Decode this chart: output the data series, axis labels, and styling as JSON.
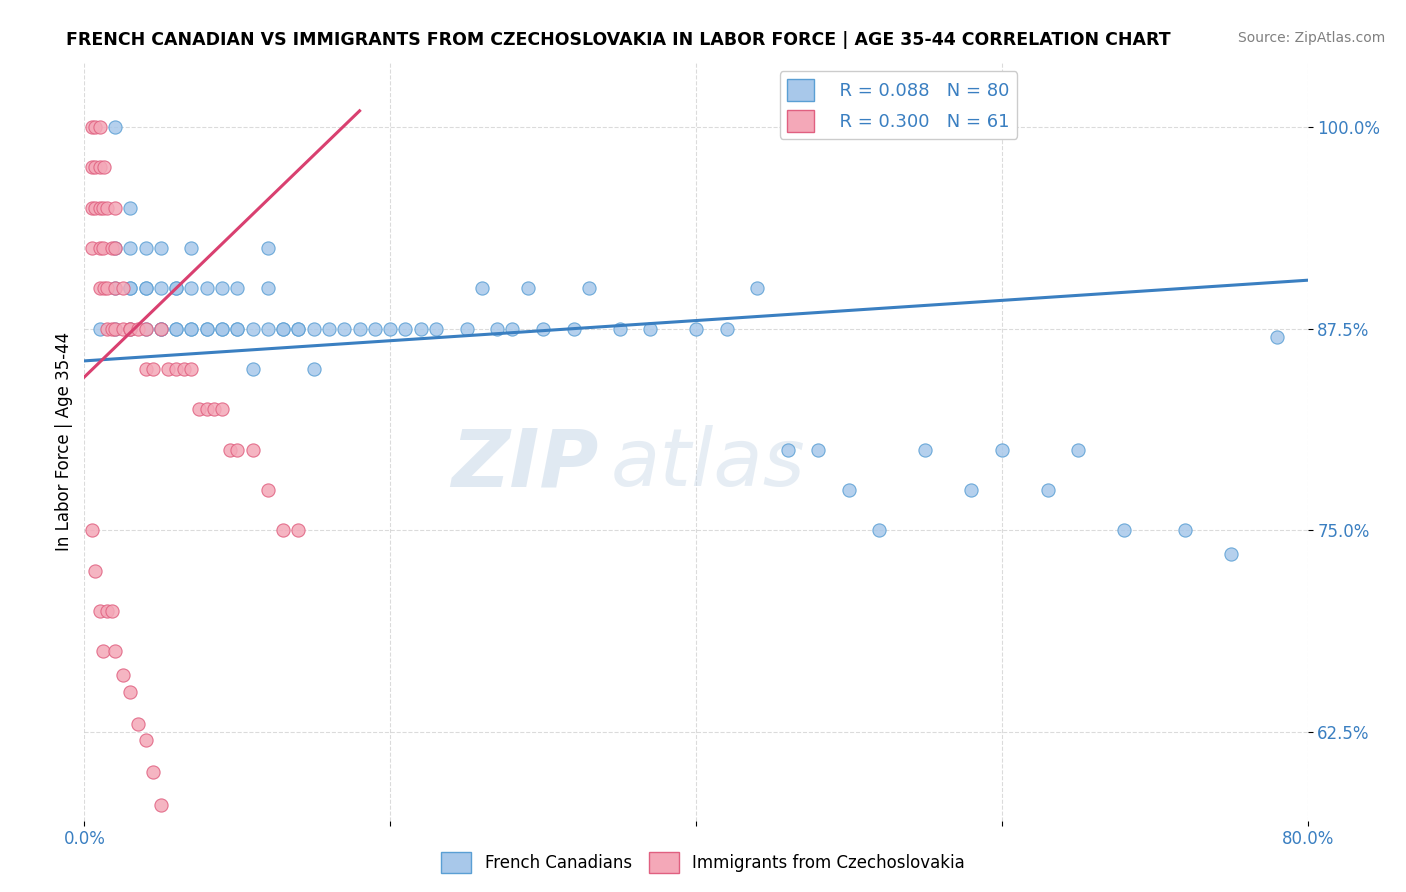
{
  "title": "FRENCH CANADIAN VS IMMIGRANTS FROM CZECHOSLOVAKIA IN LABOR FORCE | AGE 35-44 CORRELATION CHART",
  "source_text": "Source: ZipAtlas.com",
  "ylabel": "In Labor Force | Age 35-44",
  "xlim": [
    0.0,
    0.8
  ],
  "ylim": [
    0.57,
    1.04
  ],
  "yticks": [
    0.625,
    0.75,
    0.875,
    1.0
  ],
  "ytick_labels": [
    "62.5%",
    "75.0%",
    "87.5%",
    "100.0%"
  ],
  "xticks": [
    0.0,
    0.2,
    0.4,
    0.6,
    0.8
  ],
  "xtick_labels": [
    "0.0%",
    "",
    "",
    "",
    "80.0%"
  ],
  "blue_R": 0.088,
  "blue_N": 80,
  "pink_R": 0.3,
  "pink_N": 61,
  "blue_color": "#a8c8ea",
  "pink_color": "#f4a8b8",
  "blue_edge_color": "#5a9fd4",
  "pink_edge_color": "#e06080",
  "blue_line_color": "#3a7fc1",
  "pink_line_color": "#d94070",
  "legend_blue_label": "French Canadians",
  "legend_pink_label": "Immigrants from Czechoslovakia",
  "watermark_zip": "ZIP",
  "watermark_atlas": "atlas",
  "background_color": "#ffffff",
  "grid_color": "#cccccc",
  "blue_trend_x0": 0.0,
  "blue_trend_y0": 0.855,
  "blue_trend_x1": 0.8,
  "blue_trend_y1": 0.905,
  "pink_trend_x0": 0.0,
  "pink_trend_y0": 0.845,
  "pink_trend_x1": 0.18,
  "pink_trend_y1": 1.01,
  "blue_scatter_x": [
    0.01,
    0.02,
    0.02,
    0.02,
    0.02,
    0.03,
    0.03,
    0.03,
    0.03,
    0.03,
    0.04,
    0.04,
    0.04,
    0.04,
    0.05,
    0.05,
    0.05,
    0.05,
    0.06,
    0.06,
    0.06,
    0.06,
    0.07,
    0.07,
    0.07,
    0.07,
    0.08,
    0.08,
    0.08,
    0.09,
    0.09,
    0.09,
    0.1,
    0.1,
    0.1,
    0.11,
    0.11,
    0.12,
    0.12,
    0.12,
    0.13,
    0.13,
    0.14,
    0.14,
    0.15,
    0.15,
    0.16,
    0.17,
    0.18,
    0.19,
    0.2,
    0.21,
    0.22,
    0.23,
    0.25,
    0.26,
    0.27,
    0.28,
    0.29,
    0.3,
    0.32,
    0.33,
    0.35,
    0.37,
    0.4,
    0.42,
    0.44,
    0.46,
    0.48,
    0.5,
    0.52,
    0.55,
    0.58,
    0.6,
    0.63,
    0.65,
    0.68,
    0.72,
    0.75,
    0.78
  ],
  "blue_scatter_y": [
    0.875,
    0.875,
    0.9,
    0.925,
    1.0,
    0.875,
    0.9,
    0.9,
    0.925,
    0.95,
    0.875,
    0.9,
    0.9,
    0.925,
    0.875,
    0.875,
    0.9,
    0.925,
    0.875,
    0.875,
    0.9,
    0.9,
    0.875,
    0.875,
    0.9,
    0.925,
    0.875,
    0.875,
    0.9,
    0.875,
    0.875,
    0.9,
    0.875,
    0.875,
    0.9,
    0.85,
    0.875,
    0.875,
    0.9,
    0.925,
    0.875,
    0.875,
    0.875,
    0.875,
    0.85,
    0.875,
    0.875,
    0.875,
    0.875,
    0.875,
    0.875,
    0.875,
    0.875,
    0.875,
    0.875,
    0.9,
    0.875,
    0.875,
    0.9,
    0.875,
    0.875,
    0.9,
    0.875,
    0.875,
    0.875,
    0.875,
    0.9,
    0.8,
    0.8,
    0.775,
    0.75,
    0.8,
    0.775,
    0.8,
    0.775,
    0.8,
    0.75,
    0.75,
    0.735,
    0.87
  ],
  "pink_scatter_x": [
    0.005,
    0.005,
    0.005,
    0.005,
    0.007,
    0.007,
    0.007,
    0.01,
    0.01,
    0.01,
    0.01,
    0.01,
    0.012,
    0.012,
    0.013,
    0.013,
    0.015,
    0.015,
    0.015,
    0.018,
    0.018,
    0.02,
    0.02,
    0.02,
    0.02,
    0.025,
    0.025,
    0.03,
    0.03,
    0.035,
    0.04,
    0.04,
    0.045,
    0.05,
    0.055,
    0.06,
    0.065,
    0.07,
    0.075,
    0.08,
    0.085,
    0.09,
    0.095,
    0.1,
    0.11,
    0.12,
    0.13,
    0.14,
    0.005,
    0.007,
    0.01,
    0.012,
    0.015,
    0.018,
    0.02,
    0.025,
    0.03,
    0.035,
    0.04,
    0.045,
    0.05
  ],
  "pink_scatter_y": [
    0.975,
    0.95,
    1.0,
    0.925,
    0.975,
    0.95,
    1.0,
    0.95,
    0.925,
    0.975,
    1.0,
    0.9,
    0.95,
    0.925,
    0.975,
    0.9,
    0.95,
    0.9,
    0.875,
    0.925,
    0.875,
    0.95,
    0.9,
    0.875,
    0.925,
    0.875,
    0.9,
    0.875,
    0.875,
    0.875,
    0.875,
    0.85,
    0.85,
    0.875,
    0.85,
    0.85,
    0.85,
    0.85,
    0.825,
    0.825,
    0.825,
    0.825,
    0.8,
    0.8,
    0.8,
    0.775,
    0.75,
    0.75,
    0.75,
    0.725,
    0.7,
    0.675,
    0.7,
    0.7,
    0.675,
    0.66,
    0.65,
    0.63,
    0.62,
    0.6,
    0.58
  ]
}
